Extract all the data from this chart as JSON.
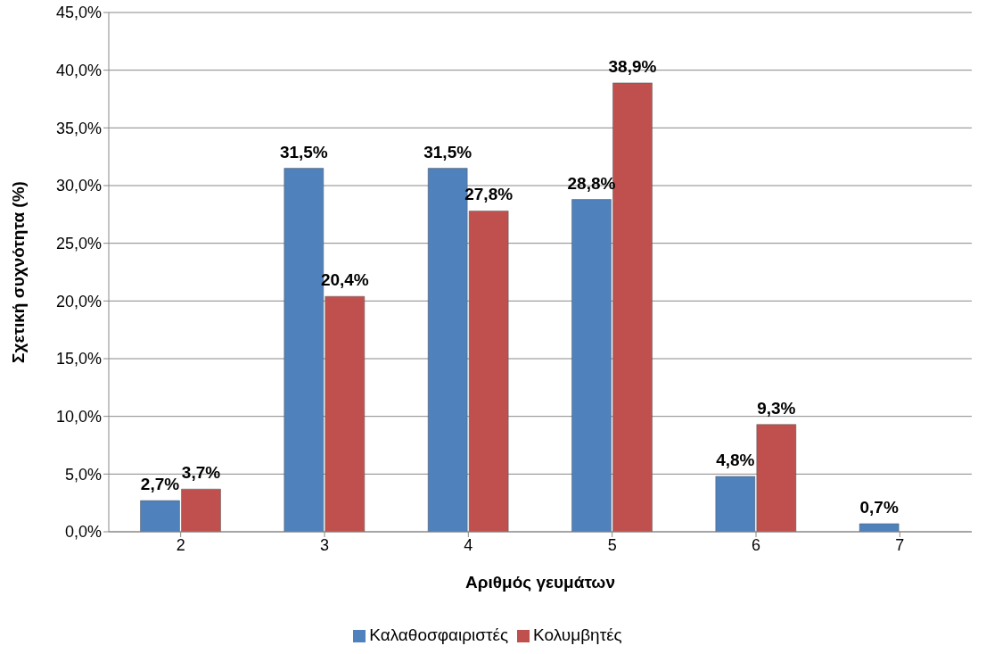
{
  "chart_data": {
    "type": "bar",
    "xlabel": "Αριθμός γευμάτων",
    "ylabel": "Σχετική συχνότητα (%)",
    "categories": [
      "2",
      "3",
      "4",
      "5",
      "6",
      "7"
    ],
    "series": [
      {
        "name": "Καλαθοσφαιριστές",
        "color": "#4f81bd",
        "values": [
          2.7,
          31.5,
          31.5,
          28.8,
          4.8,
          0.7
        ],
        "value_labels": [
          "2,7%",
          "31,5%",
          "31,5%",
          "28,8%",
          "4,8%",
          "0,7%"
        ]
      },
      {
        "name": "Κολυμβητές",
        "color": "#c0504d",
        "values": [
          3.7,
          20.4,
          27.8,
          38.9,
          9.3,
          null
        ],
        "value_labels": [
          "3,7%",
          "20,4%",
          "27,8%",
          "38,9%",
          "9,3%",
          null
        ]
      }
    ],
    "ylim": [
      0,
      45
    ],
    "yticks": [
      {
        "value": 0,
        "label": "0,0%"
      },
      {
        "value": 5,
        "label": "5,0%"
      },
      {
        "value": 10,
        "label": "10,0%"
      },
      {
        "value": 15,
        "label": "15,0%"
      },
      {
        "value": 20,
        "label": "20,0%"
      },
      {
        "value": 25,
        "label": "25,0%"
      },
      {
        "value": 30,
        "label": "30,0%"
      },
      {
        "value": 35,
        "label": "35,0%"
      },
      {
        "value": 40,
        "label": "40,0%"
      },
      {
        "value": 45,
        "label": "45,0%"
      }
    ],
    "grid": "y",
    "legend": "bottom"
  }
}
